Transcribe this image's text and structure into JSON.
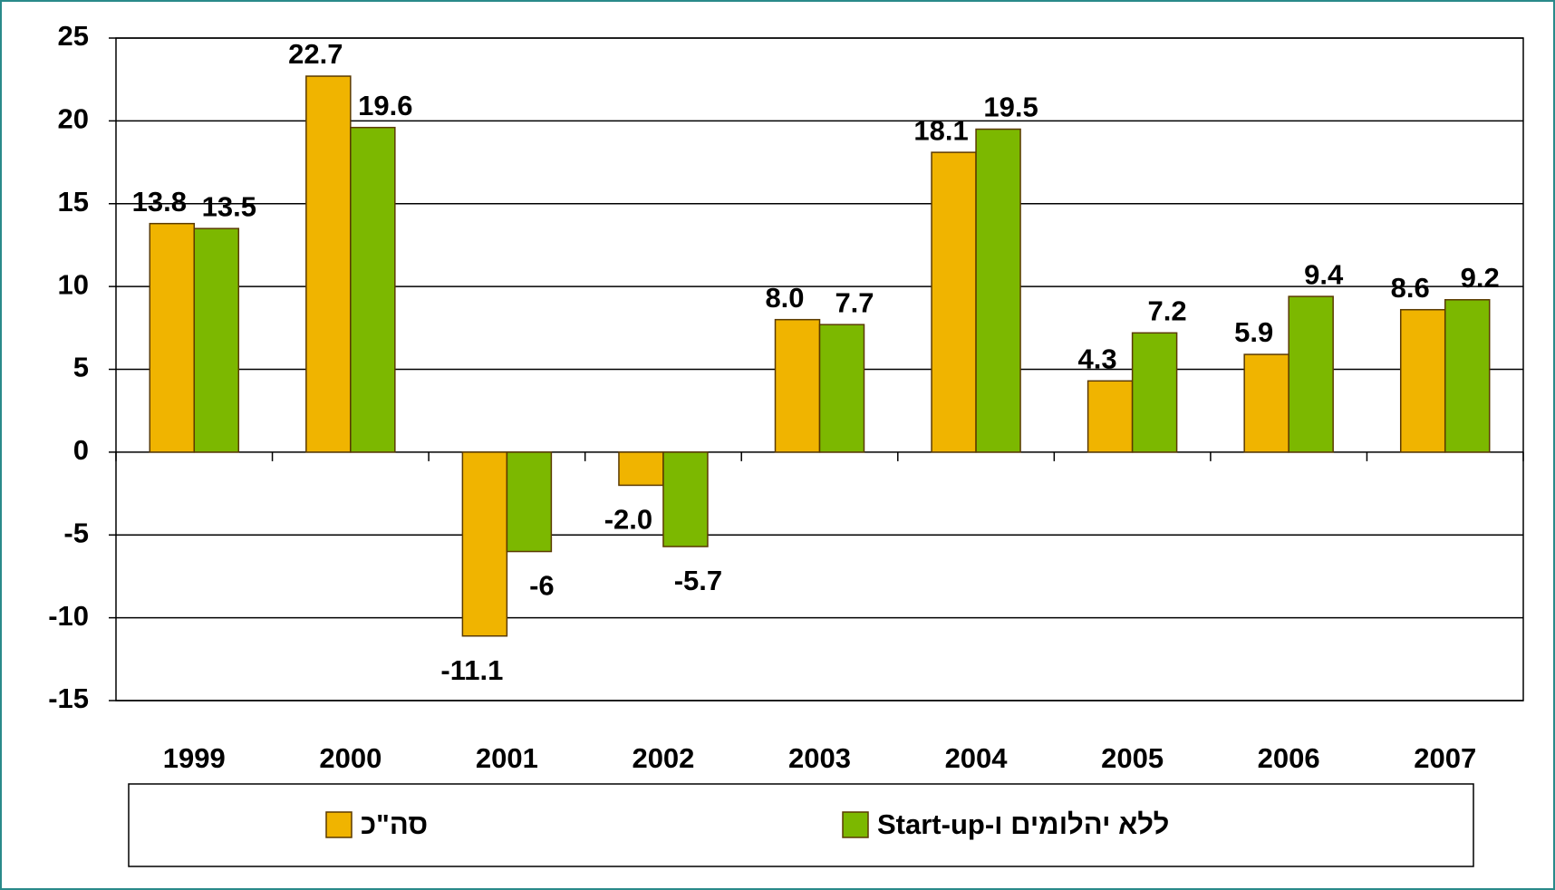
{
  "chart_data": {
    "type": "bar",
    "categories": [
      "1999",
      "2000",
      "2001",
      "2002",
      "2003",
      "2004",
      "2005",
      "2006",
      "2007"
    ],
    "series": [
      {
        "name": "סה\"כ",
        "color": "#f0b400",
        "values": [
          13.8,
          22.7,
          -11.1,
          -2.0,
          8.0,
          18.1,
          4.3,
          5.9,
          8.6
        ],
        "value_labels": [
          "13.8",
          "22.7",
          "-11.1",
          "-2.0",
          "8.0",
          "18.1",
          "4.3",
          "5.9",
          "8.6"
        ]
      },
      {
        "name": "ללא יהלומים ו-Start-up",
        "color": "#7cb800",
        "values": [
          13.5,
          19.6,
          -6,
          -5.7,
          7.7,
          19.5,
          7.2,
          9.4,
          9.2
        ],
        "value_labels": [
          "13.5",
          "19.6",
          "-6",
          "-5.7",
          "7.7",
          "19.5",
          "7.2",
          "9.4",
          "9.2"
        ]
      }
    ],
    "ylim": [
      -15,
      25
    ],
    "yticks": [
      -15,
      -10,
      -5,
      0,
      5,
      10,
      15,
      20,
      25
    ],
    "grid": true,
    "legend": "bottom"
  }
}
